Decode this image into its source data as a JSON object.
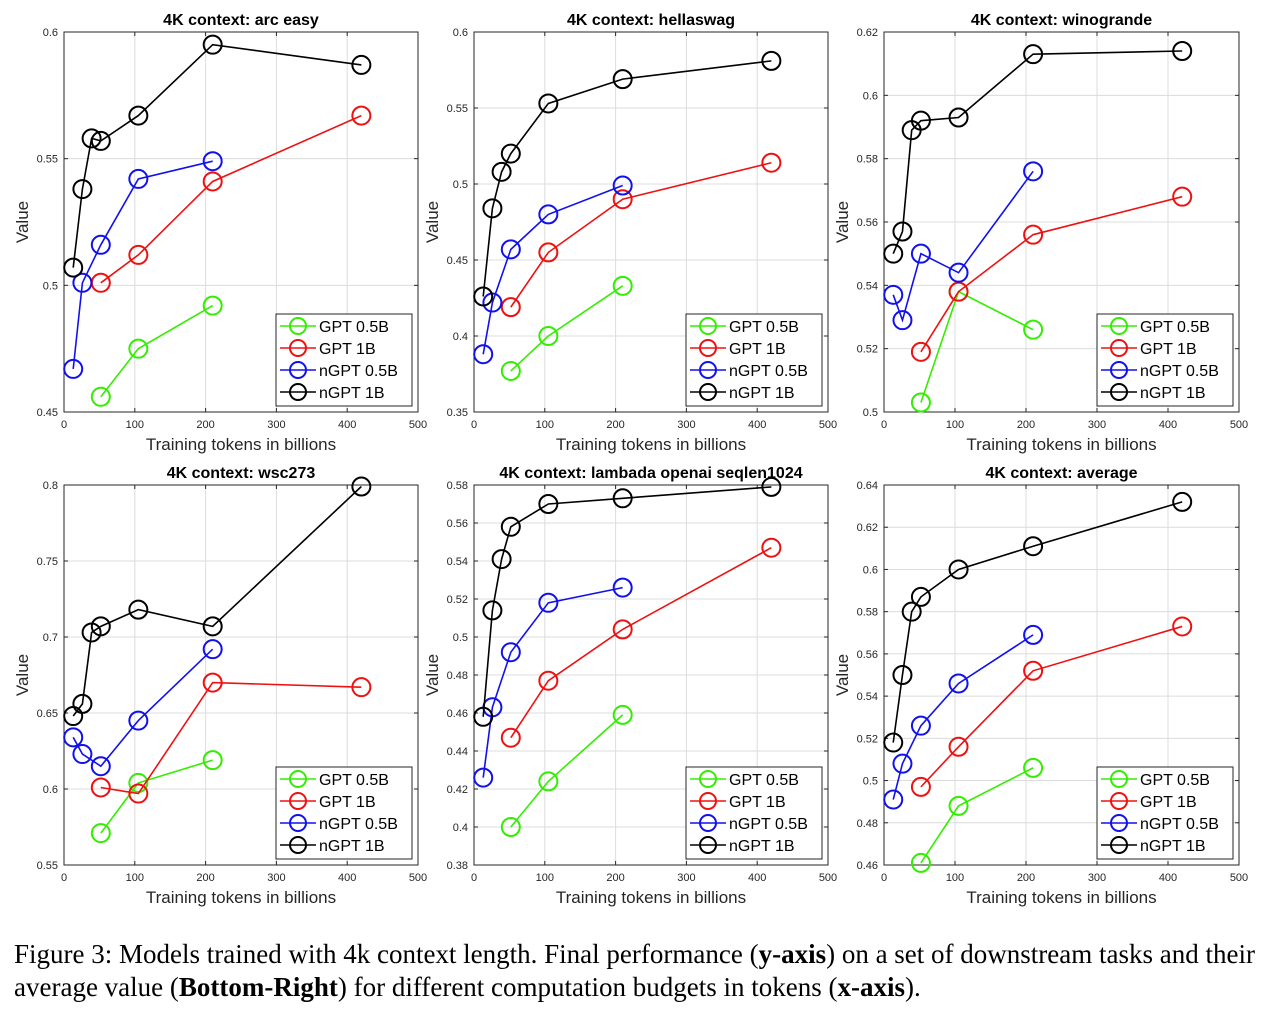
{
  "figure": {
    "caption_prefix": "Figure 3:  Models trained with 4k context length. Final performance (",
    "caption_b1": "y-axis",
    "caption_mid1": ") on a set of downstream tasks and their average value (",
    "caption_b2": "Bottom-Right",
    "caption_mid2": ") for different computation budgets in tokens (",
    "caption_b3": "x-axis",
    "caption_end": ")."
  },
  "colors": {
    "GPT 0.5B": "#33ee00",
    "GPT 1B": "#ee1111",
    "nGPT 0.5B": "#1111ee",
    "nGPT 1B": "#000000"
  },
  "chart_data": [
    {
      "type": "line",
      "title": "4K context:  arc easy",
      "xlabel": "Training tokens in billions",
      "ylabel": "Value",
      "xlim": [
        0,
        500
      ],
      "ylim": [
        0.45,
        0.6
      ],
      "xticks": [
        0,
        100,
        200,
        300,
        400,
        500
      ],
      "yticks": [
        0.45,
        0.5,
        0.55,
        0.6
      ],
      "ytick_labels": [
        "0.45",
        "0.5",
        "0.55",
        "0.6"
      ],
      "grid": true,
      "legend": "bottom-right",
      "series": [
        {
          "name": "GPT 0.5B",
          "x": [
            52,
            105,
            210
          ],
          "y": [
            0.456,
            0.475,
            0.492
          ]
        },
        {
          "name": "GPT 1B",
          "x": [
            52,
            105,
            210,
            420
          ],
          "y": [
            0.501,
            0.512,
            0.541,
            0.567
          ]
        },
        {
          "name": "nGPT 0.5B",
          "x": [
            13,
            26,
            52,
            105,
            210
          ],
          "y": [
            0.467,
            0.501,
            0.516,
            0.542,
            0.549
          ]
        },
        {
          "name": "nGPT 1B",
          "x": [
            13,
            26,
            39,
            52,
            105,
            210,
            420
          ],
          "y": [
            0.507,
            0.538,
            0.558,
            0.557,
            0.567,
            0.595,
            0.587
          ]
        }
      ]
    },
    {
      "type": "line",
      "title": "4K context:  hellaswag",
      "xlabel": "Training tokens in billions",
      "ylabel": "Value",
      "xlim": [
        0,
        500
      ],
      "ylim": [
        0.35,
        0.6
      ],
      "xticks": [
        0,
        100,
        200,
        300,
        400,
        500
      ],
      "yticks": [
        0.35,
        0.4,
        0.45,
        0.5,
        0.55,
        0.6
      ],
      "ytick_labels": [
        "0.35",
        "0.4",
        "0.45",
        "0.5",
        "0.55",
        "0.6"
      ],
      "grid": true,
      "legend": "bottom-right",
      "series": [
        {
          "name": "GPT 0.5B",
          "x": [
            52,
            105,
            210
          ],
          "y": [
            0.377,
            0.4,
            0.433
          ]
        },
        {
          "name": "GPT 1B",
          "x": [
            52,
            105,
            210,
            420
          ],
          "y": [
            0.419,
            0.455,
            0.49,
            0.514
          ]
        },
        {
          "name": "nGPT 0.5B",
          "x": [
            13,
            26,
            52,
            105,
            210
          ],
          "y": [
            0.388,
            0.422,
            0.457,
            0.48,
            0.499
          ]
        },
        {
          "name": "nGPT 1B",
          "x": [
            13,
            26,
            39,
            52,
            105,
            210,
            420
          ],
          "y": [
            0.426,
            0.484,
            0.508,
            0.52,
            0.553,
            0.569,
            0.581
          ]
        }
      ]
    },
    {
      "type": "line",
      "title": "4K context:  winogrande",
      "xlabel": "Training tokens in billions",
      "ylabel": "Value",
      "xlim": [
        0,
        500
      ],
      "ylim": [
        0.5,
        0.62
      ],
      "xticks": [
        0,
        100,
        200,
        300,
        400,
        500
      ],
      "yticks": [
        0.5,
        0.52,
        0.54,
        0.56,
        0.58,
        0.6,
        0.62
      ],
      "ytick_labels": [
        "0.5",
        "0.52",
        "0.54",
        "0.56",
        "0.58",
        "0.6",
        "0.62"
      ],
      "grid": true,
      "legend": "bottom-right",
      "series": [
        {
          "name": "GPT 0.5B",
          "x": [
            52,
            105,
            210
          ],
          "y": [
            0.503,
            0.538,
            0.526
          ]
        },
        {
          "name": "GPT 1B",
          "x": [
            52,
            105,
            210,
            420
          ],
          "y": [
            0.519,
            0.538,
            0.556,
            0.568
          ]
        },
        {
          "name": "nGPT 0.5B",
          "x": [
            13,
            26,
            52,
            105,
            210
          ],
          "y": [
            0.537,
            0.529,
            0.55,
            0.544,
            0.576
          ]
        },
        {
          "name": "nGPT 1B",
          "x": [
            13,
            26,
            39,
            52,
            105,
            210,
            420
          ],
          "y": [
            0.55,
            0.557,
            0.589,
            0.592,
            0.593,
            0.613,
            0.614
          ]
        }
      ]
    },
    {
      "type": "line",
      "title": "4K context:  wsc273",
      "xlabel": "Training tokens in billions",
      "ylabel": "Value",
      "xlim": [
        0,
        500
      ],
      "ylim": [
        0.55,
        0.8
      ],
      "xticks": [
        0,
        100,
        200,
        300,
        400,
        500
      ],
      "yticks": [
        0.55,
        0.6,
        0.65,
        0.7,
        0.75,
        0.8
      ],
      "ytick_labels": [
        "0.55",
        "0.6",
        "0.65",
        "0.7",
        "0.75",
        "0.8"
      ],
      "grid": true,
      "legend": "bottom-right",
      "series": [
        {
          "name": "GPT 0.5B",
          "x": [
            52,
            105,
            210
          ],
          "y": [
            0.571,
            0.604,
            0.619
          ]
        },
        {
          "name": "GPT 1B",
          "x": [
            52,
            105,
            210,
            420
          ],
          "y": [
            0.601,
            0.597,
            0.67,
            0.667
          ]
        },
        {
          "name": "nGPT 0.5B",
          "x": [
            13,
            26,
            52,
            105,
            210
          ],
          "y": [
            0.634,
            0.623,
            0.615,
            0.645,
            0.692
          ]
        },
        {
          "name": "nGPT 1B",
          "x": [
            13,
            26,
            39,
            52,
            105,
            210,
            420
          ],
          "y": [
            0.648,
            0.656,
            0.703,
            0.707,
            0.718,
            0.707,
            0.799
          ]
        }
      ]
    },
    {
      "type": "line",
      "title": "4K context:  lambada openai seqlen1024",
      "xlabel": "Training tokens in billions",
      "ylabel": "Value",
      "xlim": [
        0,
        500
      ],
      "ylim": [
        0.38,
        0.58
      ],
      "xticks": [
        0,
        100,
        200,
        300,
        400,
        500
      ],
      "yticks": [
        0.38,
        0.4,
        0.42,
        0.44,
        0.46,
        0.48,
        0.5,
        0.52,
        0.54,
        0.56,
        0.58
      ],
      "ytick_labels": [
        "0.38",
        "0.4",
        "0.42",
        "0.44",
        "0.46",
        "0.48",
        "0.5",
        "0.52",
        "0.54",
        "0.56",
        "0.58"
      ],
      "grid": true,
      "legend": "bottom-right",
      "series": [
        {
          "name": "GPT 0.5B",
          "x": [
            52,
            105,
            210
          ],
          "y": [
            0.4,
            0.424,
            0.459
          ]
        },
        {
          "name": "GPT 1B",
          "x": [
            52,
            105,
            210,
            420
          ],
          "y": [
            0.447,
            0.477,
            0.504,
            0.547
          ]
        },
        {
          "name": "nGPT 0.5B",
          "x": [
            13,
            26,
            52,
            105,
            210
          ],
          "y": [
            0.426,
            0.463,
            0.492,
            0.518,
            0.526
          ]
        },
        {
          "name": "nGPT 1B",
          "x": [
            13,
            26,
            39,
            52,
            105,
            210,
            420
          ],
          "y": [
            0.458,
            0.514,
            0.541,
            0.558,
            0.57,
            0.573,
            0.579
          ]
        }
      ]
    },
    {
      "type": "line",
      "title": "4K context:  average",
      "xlabel": "Training tokens in billions",
      "ylabel": "Value",
      "xlim": [
        0,
        500
      ],
      "ylim": [
        0.46,
        0.64
      ],
      "xticks": [
        0,
        100,
        200,
        300,
        400,
        500
      ],
      "yticks": [
        0.46,
        0.48,
        0.5,
        0.52,
        0.54,
        0.56,
        0.58,
        0.6,
        0.62,
        0.64
      ],
      "ytick_labels": [
        "0.46",
        "0.48",
        "0.5",
        "0.52",
        "0.54",
        "0.56",
        "0.58",
        "0.6",
        "0.62",
        "0.64"
      ],
      "grid": true,
      "legend": "bottom-right",
      "series": [
        {
          "name": "GPT 0.5B",
          "x": [
            52,
            105,
            210
          ],
          "y": [
            0.461,
            0.488,
            0.506
          ]
        },
        {
          "name": "GPT 1B",
          "x": [
            52,
            105,
            210,
            420
          ],
          "y": [
            0.497,
            0.516,
            0.552,
            0.573
          ]
        },
        {
          "name": "nGPT 0.5B",
          "x": [
            13,
            26,
            52,
            105,
            210
          ],
          "y": [
            0.491,
            0.508,
            0.526,
            0.546,
            0.569
          ]
        },
        {
          "name": "nGPT 1B",
          "x": [
            13,
            26,
            39,
            52,
            105,
            210,
            420
          ],
          "y": [
            0.518,
            0.55,
            0.58,
            0.587,
            0.6,
            0.611,
            0.632
          ]
        }
      ]
    }
  ]
}
